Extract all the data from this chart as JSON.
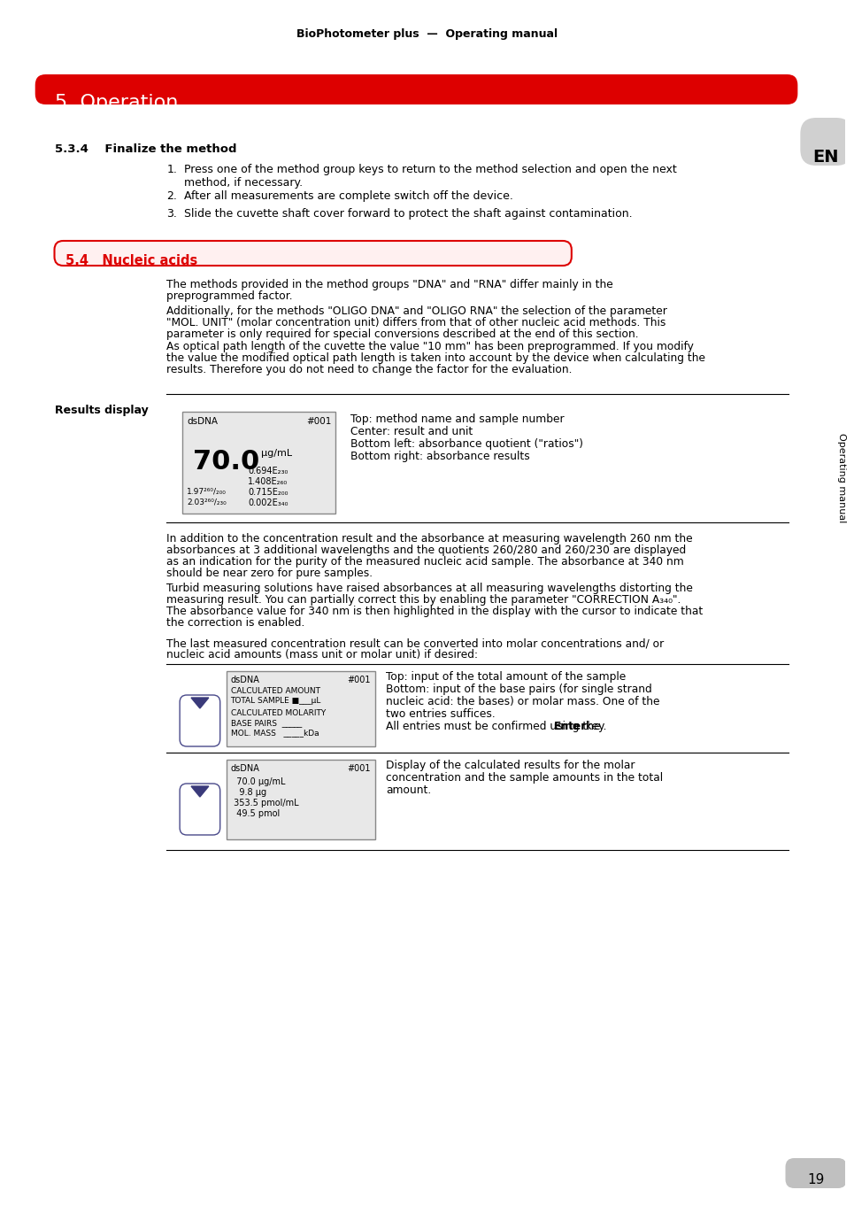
{
  "page_title": "BioPhotometer plus  —  Operating manual",
  "chapter_title": "5  Operation",
  "section_534_title": "5.3.4    Finalize the method",
  "section_534_items": [
    "Press one of the method group keys to return to the method selection and open the next\nmethod, if necessary.",
    "After all measurements are complete switch off the device.",
    "Slide the cuvette shaft cover forward to protect the shaft against contamination."
  ],
  "section_54_title": "5.4   Nucleic acids",
  "para1": "The methods provided in the method groups \"DNA\" and \"RNA\" differ mainly in the\npreprogrammed factor.",
  "para2": "Additionally, for the methods \"OLIGO DNA\" and \"OLIGO RNA\" the selection of the parameter\n\"MOL. UNIT\" (molar concentration unit) differs from that of other nucleic acid methods. This\nparameter is only required for special conversions described at the end of this section.",
  "para3": "As optical path length of the cuvette the value \"10 mm\" has been preprogrammed. If you modify\nthe value the modified optical path length is taken into account by the device when calculating the\nresults. Therefore you do not need to change the factor for the evaluation.",
  "results_display_label": "Results display",
  "display1_lines": [
    "dsDNA                    #001",
    "70.0 μg/mL",
    "         0.694E₂₃₀",
    "         1.408E₂₆₀",
    "1.97²⁶⁰/₂₀₀   0.715E₂₀₀",
    "2.03²⁶⁰/₂₃₀   0.002E₃₄₀"
  ],
  "display1_desc": [
    "Top: method name and sample number",
    "Center: result and unit",
    "Bottom left: absorbance quotient (\"ratios\")",
    "Bottom right: absorbance results"
  ],
  "para4": "In addition to the concentration result and the absorbance at measuring wavelength 260 nm the\nabsorbances at 3 additional wavelengths and the quotients 260/280 and 260/230 are displayed\nas an indication for the purity of the measured nucleic acid sample. The absorbance at 340 nm\nshould be near zero for pure samples.",
  "para5": "Turbid measuring solutions have raised absorbances at all measuring wavelengths distorting the\nmeasuring result. You can partially correct this by enabling the parameter \"CORRECTION A₃₄₀\".\nThe absorbance value for 340 nm is then highlighted in the display with the cursor to indicate that\nthe correction is enabled.",
  "para6": "The last measured concentration result can be converted into molar concentrations and/ or\nnucleic acid amounts (mass unit or molar unit) if desired:",
  "display2_lines": [
    "dsDNA                    #001",
    "CALCULATED AMOUNT",
    "TOTAL SAMPLE ■___μL",
    "",
    "CALCULATED MOLARITY",
    "BASE PAIRS  _____",
    "MOL. MASS   _____kDa"
  ],
  "display2_desc": [
    "Top: input of the total amount of the sample",
    "Bottom: input of the base pairs (for single strand",
    "nucleic acid: the bases) or molar mass. One of the",
    "two entries suffices.",
    "All entries must be confirmed using the Enter key."
  ],
  "display3_lines": [
    "dsDNA                    #001",
    "  70.0 μg/mL",
    "   9.8 μg",
    " 353.5 pmol/mL",
    "  49.5 pmol"
  ],
  "display3_desc": [
    "Display of the calculated results for the molar",
    "concentration and the sample amounts in the total",
    "amount."
  ],
  "en_label": "EN",
  "side_label": "Operating manual",
  "page_number": "19",
  "bg_color": "#ffffff",
  "red_color": "#dd0000",
  "text_color": "#000000",
  "gray_color": "#cccccc"
}
